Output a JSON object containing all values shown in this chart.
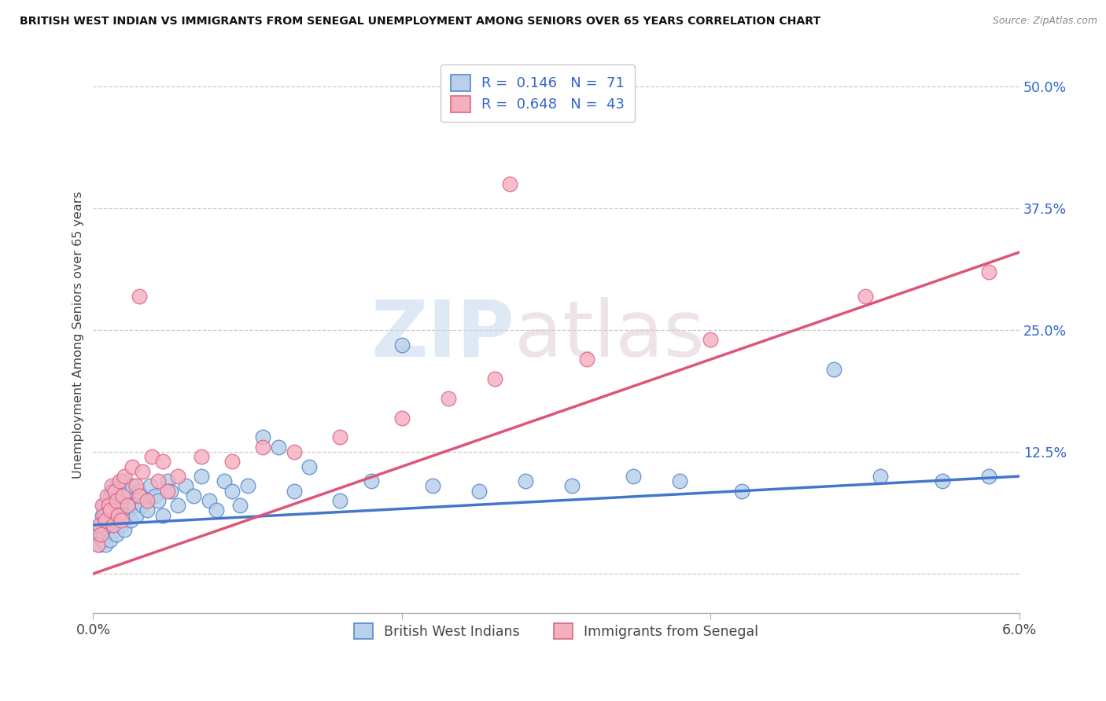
{
  "title": "BRITISH WEST INDIAN VS IMMIGRANTS FROM SENEGAL UNEMPLOYMENT AMONG SENIORS OVER 65 YEARS CORRELATION CHART",
  "source": "Source: ZipAtlas.com",
  "ylabel": "Unemployment Among Seniors over 65 years",
  "xlim": [
    0.0,
    6.0
  ],
  "ylim": [
    -4.0,
    53.0
  ],
  "ytick_vals": [
    0.0,
    12.5,
    25.0,
    37.5,
    50.0
  ],
  "ytick_labels": [
    "",
    "12.5%",
    "25.0%",
    "37.5%",
    "50.0%"
  ],
  "xtick_positions": [
    0.0,
    2.0,
    4.0,
    6.0
  ],
  "xtick_labels": [
    "0.0%",
    "",
    "",
    "6.0%"
  ],
  "blue_R": 0.146,
  "blue_N": 71,
  "pink_R": 0.648,
  "pink_N": 43,
  "blue_color": "#b8d0ea",
  "blue_edge_color": "#5588cc",
  "blue_line_color": "#4477cc",
  "pink_color": "#f5b0c0",
  "pink_edge_color": "#dd6688",
  "pink_line_color": "#dd5577",
  "legend_label_blue": "British West Indians",
  "legend_label_pink": "Immigrants from Senegal",
  "watermark_zip": "ZIP",
  "watermark_atlas": "atlas",
  "background_color": "#ffffff",
  "right_yaxis_color": "#3366cc",
  "title_color": "#111111",
  "source_color": "#888888",
  "blue_line_y0": 5.0,
  "blue_line_y1": 10.0,
  "pink_line_y0": 0.0,
  "pink_line_y1": 33.0,
  "blue_x": [
    0.03,
    0.04,
    0.05,
    0.06,
    0.06,
    0.07,
    0.07,
    0.08,
    0.08,
    0.09,
    0.09,
    0.1,
    0.1,
    0.11,
    0.11,
    0.12,
    0.12,
    0.13,
    0.14,
    0.15,
    0.15,
    0.16,
    0.17,
    0.18,
    0.18,
    0.19,
    0.2,
    0.21,
    0.22,
    0.23,
    0.24,
    0.25,
    0.27,
    0.28,
    0.3,
    0.32,
    0.35,
    0.37,
    0.4,
    0.42,
    0.45,
    0.48,
    0.5,
    0.55,
    0.6,
    0.65,
    0.7,
    0.75,
    0.8,
    0.85,
    0.9,
    0.95,
    1.0,
    1.1,
    1.2,
    1.3,
    1.4,
    1.6,
    1.8,
    2.0,
    2.2,
    2.5,
    2.8,
    3.1,
    3.5,
    3.8,
    4.2,
    4.8,
    5.1,
    5.5,
    5.8
  ],
  "blue_y": [
    4.0,
    3.0,
    5.0,
    3.5,
    6.0,
    4.0,
    7.0,
    5.5,
    3.0,
    6.5,
    4.5,
    7.0,
    5.0,
    8.0,
    3.5,
    6.0,
    8.5,
    5.5,
    7.5,
    9.0,
    4.0,
    6.5,
    8.0,
    5.0,
    7.0,
    9.5,
    4.5,
    7.5,
    6.0,
    8.5,
    5.5,
    9.0,
    7.0,
    6.0,
    8.5,
    7.0,
    6.5,
    9.0,
    8.0,
    7.5,
    6.0,
    9.5,
    8.5,
    7.0,
    9.0,
    8.0,
    10.0,
    7.5,
    6.5,
    9.5,
    8.5,
    7.0,
    9.0,
    14.0,
    13.0,
    8.5,
    11.0,
    7.5,
    9.5,
    23.5,
    9.0,
    8.5,
    9.5,
    9.0,
    10.0,
    9.5,
    8.5,
    21.0,
    10.0,
    9.5,
    10.0
  ],
  "pink_x": [
    0.03,
    0.04,
    0.05,
    0.06,
    0.07,
    0.08,
    0.09,
    0.1,
    0.11,
    0.12,
    0.13,
    0.14,
    0.15,
    0.16,
    0.17,
    0.18,
    0.19,
    0.2,
    0.22,
    0.25,
    0.28,
    0.3,
    0.32,
    0.35,
    0.38,
    0.42,
    0.45,
    0.48,
    0.3,
    0.55,
    0.7,
    0.9,
    1.1,
    1.3,
    1.6,
    2.0,
    2.3,
    2.6,
    2.7,
    3.2,
    4.0,
    5.0,
    5.8
  ],
  "pink_y": [
    3.0,
    5.0,
    4.0,
    7.0,
    6.0,
    5.5,
    8.0,
    7.0,
    6.5,
    9.0,
    5.0,
    8.5,
    7.5,
    6.0,
    9.5,
    5.5,
    8.0,
    10.0,
    7.0,
    11.0,
    9.0,
    8.0,
    10.5,
    7.5,
    12.0,
    9.5,
    11.5,
    8.5,
    28.5,
    10.0,
    12.0,
    11.5,
    13.0,
    12.5,
    14.0,
    16.0,
    18.0,
    20.0,
    40.0,
    22.0,
    24.0,
    28.5,
    31.0
  ]
}
